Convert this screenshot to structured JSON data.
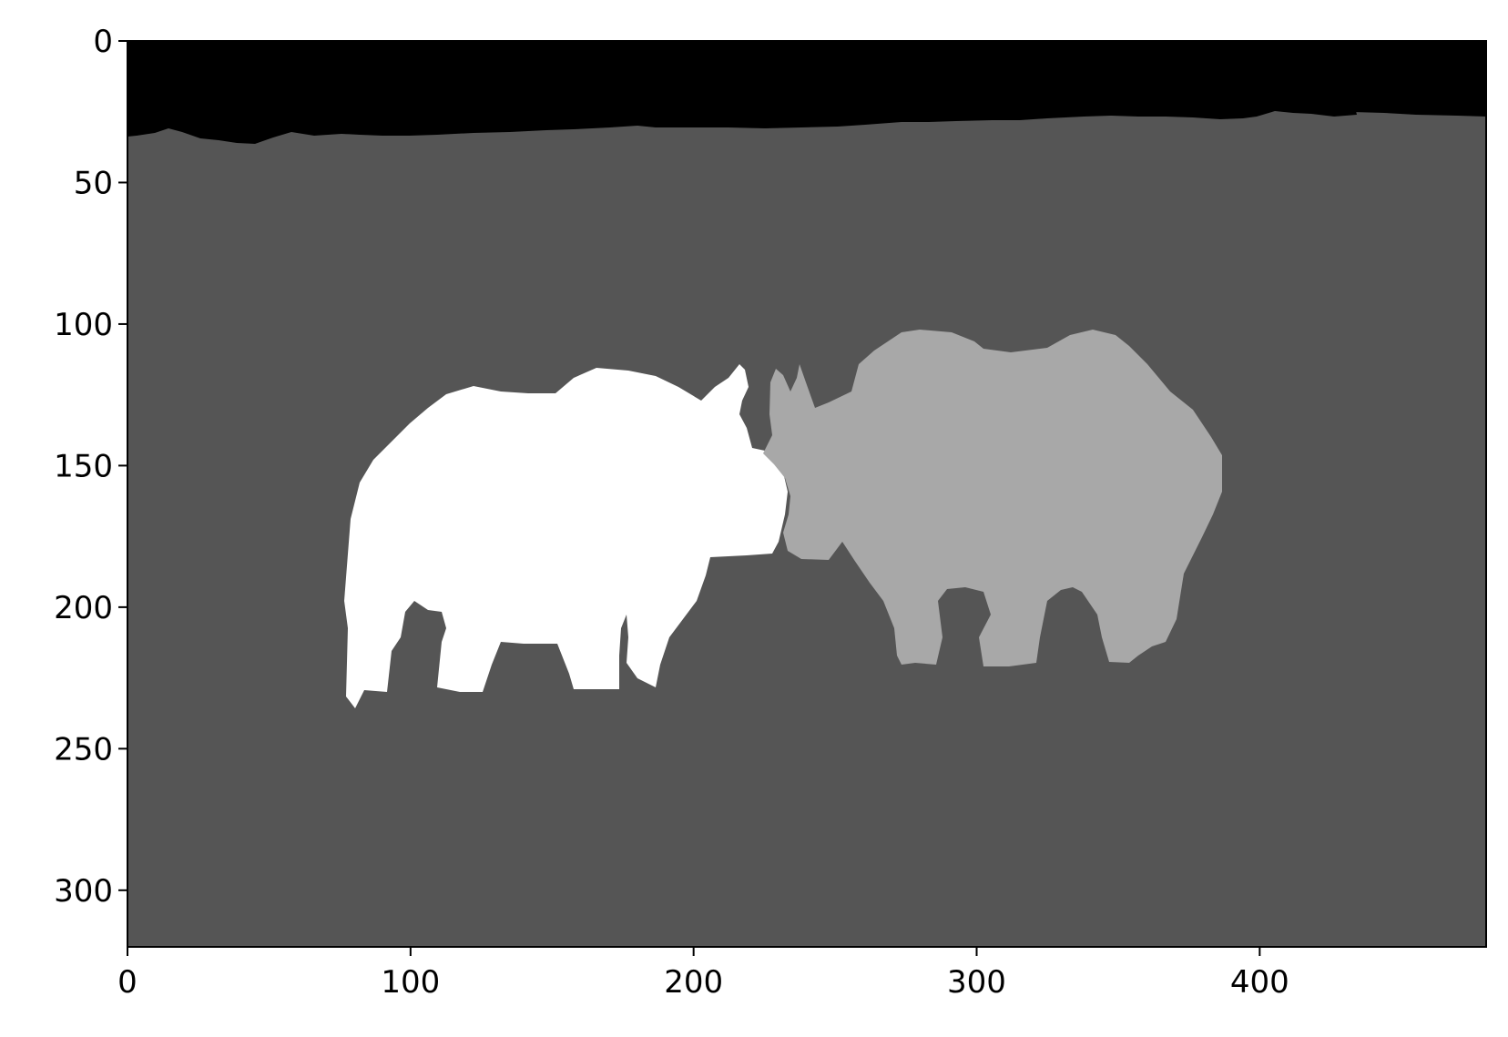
{
  "image": {
    "kind": "segmentation mask",
    "colors": {
      "sky": "#000000",
      "ground": "#555555",
      "rhino_left": "#ffffff",
      "rhino_right": "#a8a8a8",
      "axes": "#000000",
      "background": "#ffffff"
    }
  },
  "axes": {
    "x": {
      "range": [
        0,
        480
      ],
      "ticks": [
        {
          "value": 0,
          "label": "0"
        },
        {
          "value": 100,
          "label": "100"
        },
        {
          "value": 200,
          "label": "200"
        },
        {
          "value": 300,
          "label": "300"
        },
        {
          "value": 400,
          "label": "400"
        }
      ]
    },
    "y": {
      "range": [
        0,
        320
      ],
      "inverted": true,
      "ticks": [
        {
          "value": 0,
          "label": "0"
        },
        {
          "value": 50,
          "label": "50"
        },
        {
          "value": 100,
          "label": "100"
        },
        {
          "value": 150,
          "label": "150"
        },
        {
          "value": 200,
          "label": "200"
        },
        {
          "value": 250,
          "label": "250"
        },
        {
          "value": 300,
          "label": "300"
        }
      ]
    }
  }
}
